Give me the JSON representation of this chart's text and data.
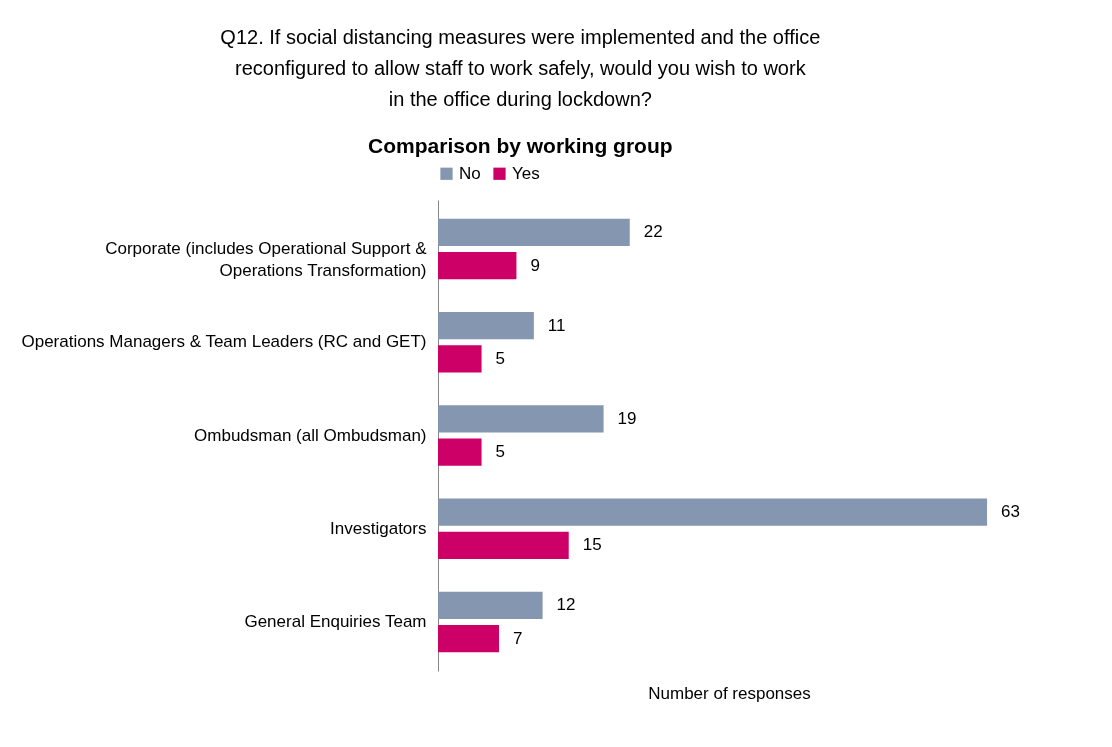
{
  "chart_data": {
    "type": "bar",
    "orientation": "horizontal",
    "title": "Q12. If social distancing measures were implemented and the office reconfigured to allow staff to work safely, would you wish to work in the office during lockdown?",
    "subtitle": "Comparison by working group",
    "xlabel": "Number of responses",
    "categories": [
      "Corporate (includes Operational Support & Operations Transformation)",
      "Operations Managers & Team Leaders (RC and GET)",
      "Ombudsman (all Ombudsman)",
      "Investigators",
      "General Enquiries Team"
    ],
    "series": [
      {
        "name": "No",
        "color": "#8496b0",
        "values": [
          22,
          11,
          19,
          63,
          12
        ]
      },
      {
        "name": "Yes",
        "color": "#cc0066",
        "values": [
          9,
          5,
          5,
          15,
          7
        ]
      }
    ],
    "data_labels": true,
    "legend": "top",
    "tick_labels": "y"
  }
}
